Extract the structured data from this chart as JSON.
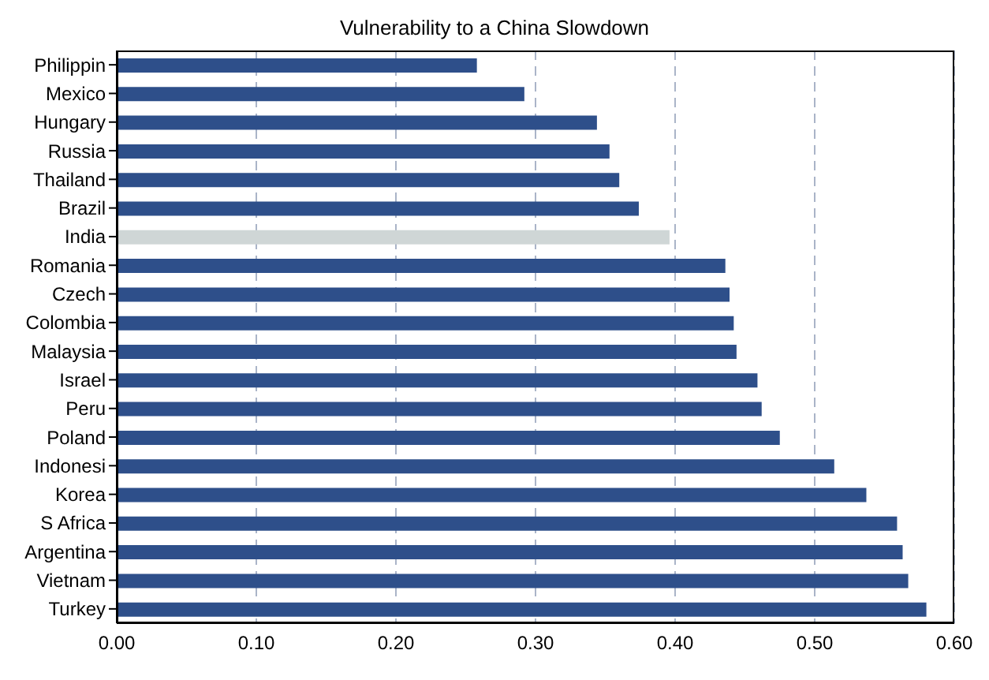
{
  "chart_data": {
    "type": "bar",
    "orientation": "horizontal",
    "title": "Vulnerability to a China Slowdown",
    "categories": [
      "Philippin",
      "Mexico",
      "Hungary",
      "Russia",
      "Thailand",
      "Brazil",
      "India",
      "Romania",
      "Czech",
      "Colombia",
      "Malaysia",
      "Israel",
      "Peru",
      "Poland",
      "Indonesi",
      "Korea",
      "S Africa",
      "Argentina",
      "Vietnam",
      "Turkey"
    ],
    "values": [
      0.258,
      0.292,
      0.344,
      0.353,
      0.36,
      0.374,
      0.396,
      0.436,
      0.439,
      0.442,
      0.444,
      0.459,
      0.462,
      0.475,
      0.514,
      0.537,
      0.559,
      0.563,
      0.567,
      0.58
    ],
    "colors": [
      "#2e4f8a",
      "#2e4f8a",
      "#2e4f8a",
      "#2e4f8a",
      "#2e4f8a",
      "#2e4f8a",
      "#cfd6d6",
      "#2e4f8a",
      "#2e4f8a",
      "#2e4f8a",
      "#2e4f8a",
      "#2e4f8a",
      "#2e4f8a",
      "#2e4f8a",
      "#2e4f8a",
      "#2e4f8a",
      "#2e4f8a",
      "#2e4f8a",
      "#2e4f8a",
      "#2e4f8a"
    ],
    "xlim": [
      0,
      0.6
    ],
    "xticks": [
      {
        "value": 0,
        "label": "0.00"
      },
      {
        "value": 0.1,
        "label": "0.10"
      },
      {
        "value": 0.2,
        "label": "0.20"
      },
      {
        "value": 0.3,
        "label": "0.30"
      },
      {
        "value": 0.4,
        "label": "0.40"
      },
      {
        "value": 0.5,
        "label": "0.50"
      },
      {
        "value": 0.6,
        "label": "0.60"
      }
    ],
    "grid": "x"
  }
}
